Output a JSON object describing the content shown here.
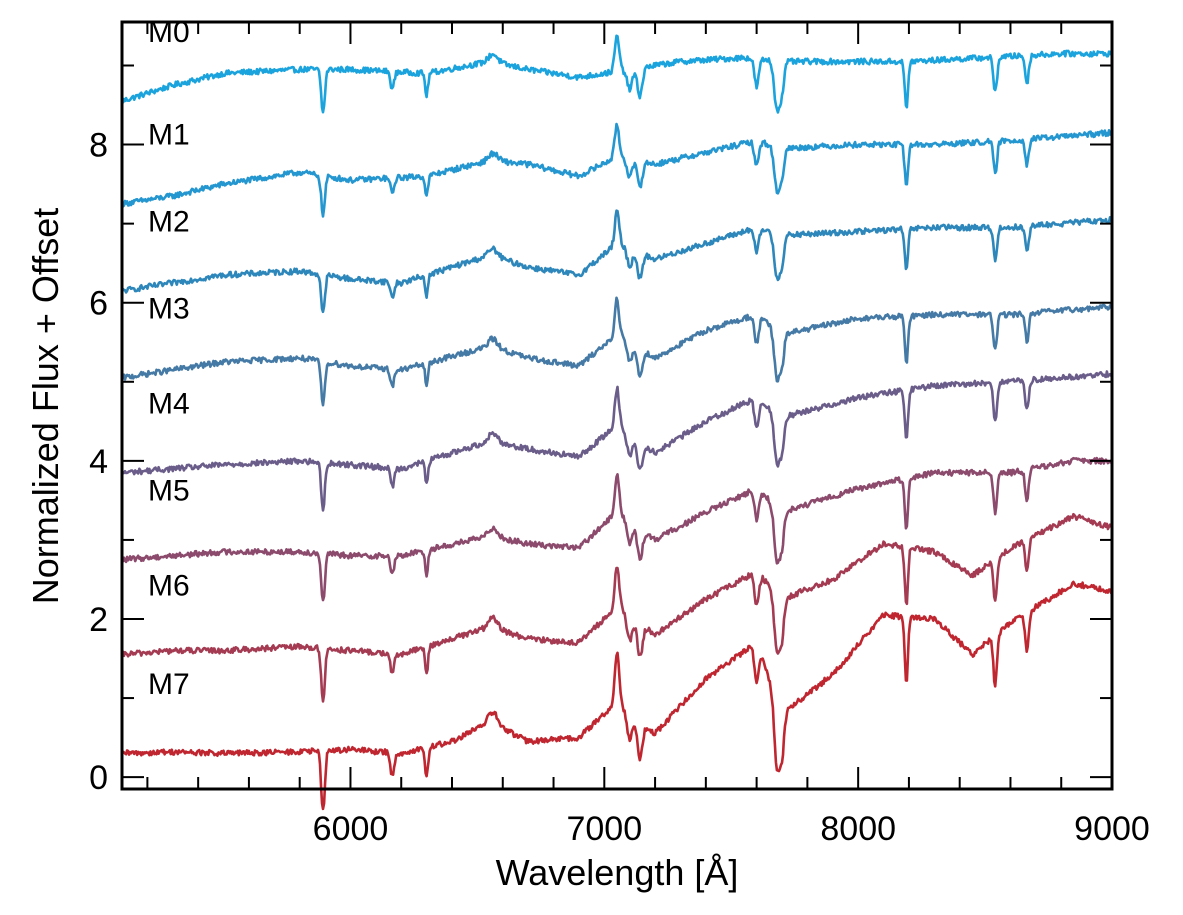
{
  "chart_data": {
    "type": "line",
    "title": "",
    "xlabel": "Wavelength [Å]",
    "ylabel": "Normalized Flux + Offset",
    "xlim": [
      5100,
      9000
    ],
    "ylim": [
      -0.15,
      9.55
    ],
    "xticks": [
      6000,
      7000,
      8000,
      9000
    ],
    "xtick_labels": [
      "6000",
      "7000",
      "8000",
      "9000"
    ],
    "yticks": [
      0,
      2,
      4,
      6,
      8
    ],
    "ytick_labels": [
      "0",
      "2",
      "4",
      "6",
      "8"
    ],
    "grid": false,
    "legend": "none",
    "features": [
      {
        "x": 5892,
        "d": -0.55,
        "w": 10
      },
      {
        "x": 6165,
        "d": -0.22,
        "w": 10
      },
      {
        "x": 6300,
        "d": -0.28,
        "w": 8
      },
      {
        "x": 6563,
        "d": 0.1,
        "w": 25
      },
      {
        "x": 7050,
        "d": 0.45,
        "w": 12
      },
      {
        "x": 7100,
        "d": -0.25,
        "w": 14
      },
      {
        "x": 7140,
        "d": -0.35,
        "w": 14
      },
      {
        "x": 7600,
        "d": -0.35,
        "w": 12
      },
      {
        "x": 7680,
        "d": -0.6,
        "w": 15
      },
      {
        "x": 7700,
        "d": -0.35,
        "w": 12
      },
      {
        "x": 8190,
        "d": -0.6,
        "w": 9
      },
      {
        "x": 8540,
        "d": -0.45,
        "w": 10
      },
      {
        "x": 8665,
        "d": -0.35,
        "w": 10
      }
    ],
    "series": [
      {
        "name": "M0",
        "color": "#1aa3dc",
        "feature_scale": 1.0,
        "x": [
          5100,
          5300,
          5500,
          5800,
          6000,
          6300,
          6550,
          6700,
          6900,
          7100,
          7300,
          7550,
          7700,
          8000,
          8200,
          8500,
          8800,
          9000
        ],
        "y": [
          8.55,
          8.75,
          8.9,
          8.95,
          8.95,
          8.9,
          9.05,
          8.95,
          8.85,
          8.95,
          9.05,
          9.1,
          9.05,
          9.05,
          9.05,
          9.1,
          9.15,
          9.15
        ]
      },
      {
        "name": "M1",
        "color": "#2496d0",
        "feature_scale": 0.9,
        "x": [
          5100,
          5300,
          5500,
          5800,
          6000,
          6300,
          6550,
          6700,
          6900,
          7050,
          7200,
          7400,
          7600,
          7700,
          8000,
          8300,
          8600,
          9000
        ],
        "y": [
          7.25,
          7.35,
          7.5,
          7.65,
          7.55,
          7.6,
          7.8,
          7.75,
          7.6,
          7.85,
          7.75,
          7.9,
          8.05,
          7.95,
          8.0,
          8.0,
          8.05,
          8.15
        ]
      },
      {
        "name": "M2",
        "color": "#2e87bb",
        "feature_scale": 0.9,
        "x": [
          5100,
          5300,
          5500,
          5800,
          6000,
          6200,
          6550,
          6700,
          6900,
          7050,
          7200,
          7400,
          7600,
          7700,
          8000,
          8300,
          8600,
          9000
        ],
        "y": [
          6.15,
          6.25,
          6.35,
          6.4,
          6.3,
          6.25,
          6.6,
          6.45,
          6.35,
          6.75,
          6.55,
          6.75,
          6.95,
          6.85,
          6.9,
          6.95,
          6.95,
          7.05
        ]
      },
      {
        "name": "M3",
        "color": "#447aa5",
        "feature_scale": 1.0,
        "x": [
          5100,
          5300,
          5500,
          5800,
          6000,
          6200,
          6550,
          6700,
          6900,
          7050,
          7200,
          7400,
          7600,
          7700,
          8000,
          8300,
          8600,
          9000
        ],
        "y": [
          5.05,
          5.15,
          5.25,
          5.3,
          5.2,
          5.15,
          5.45,
          5.3,
          5.2,
          5.6,
          5.3,
          5.65,
          5.85,
          5.6,
          5.8,
          5.85,
          5.85,
          5.95
        ]
      },
      {
        "name": "M4",
        "color": "#6b5d8a",
        "feature_scale": 1.05,
        "x": [
          5100,
          5300,
          5500,
          5800,
          6000,
          6200,
          6550,
          6700,
          6900,
          7050,
          7200,
          7400,
          7600,
          7700,
          8000,
          8300,
          8600,
          9000
        ],
        "y": [
          3.85,
          3.9,
          3.95,
          4.0,
          3.95,
          3.9,
          4.25,
          4.15,
          4.05,
          4.45,
          4.1,
          4.5,
          4.8,
          4.55,
          4.8,
          4.95,
          5.0,
          5.1
        ]
      },
      {
        "name": "M5",
        "color": "#8c4a6c",
        "feature_scale": 1.1,
        "x": [
          5100,
          5300,
          5500,
          5800,
          6000,
          6200,
          6550,
          6700,
          6900,
          7050,
          7200,
          7400,
          7600,
          7700,
          8000,
          8300,
          8600,
          8850,
          9000
        ],
        "y": [
          2.75,
          2.8,
          2.85,
          2.85,
          2.8,
          2.8,
          3.05,
          2.95,
          2.9,
          3.35,
          3.0,
          3.35,
          3.65,
          3.35,
          3.65,
          3.85,
          3.85,
          4.0,
          4.0
        ]
      },
      {
        "name": "M6",
        "color": "#a43b52",
        "feature_scale": 1.2,
        "x": [
          5100,
          5300,
          5500,
          5800,
          6000,
          6200,
          6550,
          6700,
          6900,
          7050,
          7200,
          7400,
          7600,
          7700,
          7900,
          8100,
          8300,
          8450,
          8600,
          8850,
          9000
        ],
        "y": [
          1.55,
          1.6,
          1.6,
          1.65,
          1.6,
          1.55,
          1.9,
          1.75,
          1.7,
          2.15,
          1.8,
          2.25,
          2.6,
          2.25,
          2.5,
          2.95,
          2.85,
          2.55,
          2.9,
          3.3,
          3.15
        ]
      },
      {
        "name": "M7",
        "color": "#c0262f",
        "feature_scale": 1.4,
        "x": [
          5100,
          5300,
          5500,
          5800,
          6000,
          6200,
          6400,
          6550,
          6700,
          6900,
          7050,
          7200,
          7400,
          7600,
          7700,
          7900,
          8100,
          8300,
          8450,
          8600,
          8850,
          9000
        ],
        "y": [
          0.3,
          0.32,
          0.3,
          0.32,
          0.35,
          0.3,
          0.45,
          0.7,
          0.45,
          0.5,
          0.95,
          0.55,
          1.25,
          1.7,
          0.8,
          1.3,
          2.05,
          2.0,
          1.55,
          1.95,
          2.45,
          2.35
        ]
      }
    ]
  }
}
